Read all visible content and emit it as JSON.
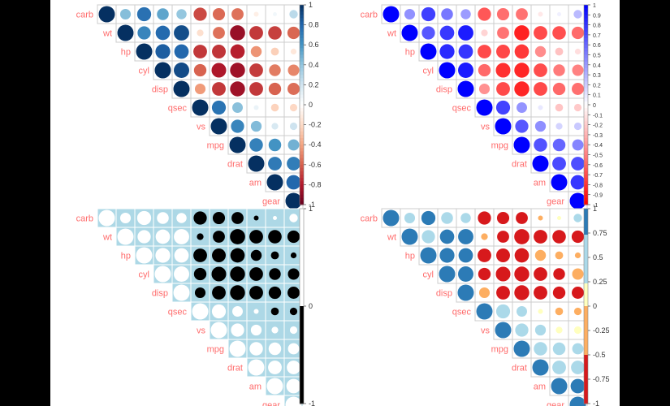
{
  "chart_data": [
    {
      "type": "heatmap",
      "variables": [
        "carb",
        "wt",
        "hp",
        "cyl",
        "disp",
        "qsec",
        "vs",
        "mpg",
        "drat",
        "am",
        "gear"
      ],
      "matrix": [
        [
          1,
          0.43,
          0.75,
          0.53,
          0.39,
          -0.66,
          -0.57,
          -0.55,
          -0.09,
          0.06,
          0.27
        ],
        [
          0.43,
          1,
          0.66,
          0.78,
          0.89,
          -0.17,
          -0.55,
          -0.87,
          -0.71,
          -0.69,
          -0.58
        ],
        [
          0.75,
          0.66,
          1,
          0.83,
          0.79,
          -0.71,
          -0.72,
          -0.78,
          -0.45,
          -0.24,
          -0.13
        ],
        [
          0.53,
          0.78,
          0.83,
          1,
          0.9,
          -0.59,
          -0.81,
          -0.85,
          -0.7,
          -0.52,
          -0.49
        ],
        [
          0.39,
          0.89,
          0.79,
          0.9,
          1,
          -0.43,
          -0.71,
          -0.85,
          -0.71,
          -0.59,
          -0.56
        ],
        [
          -0.66,
          -0.17,
          -0.71,
          -0.59,
          -0.43,
          1,
          0.74,
          0.42,
          0.09,
          -0.23,
          -0.21
        ],
        [
          -0.57,
          -0.55,
          -0.72,
          -0.81,
          -0.71,
          0.74,
          1,
          0.66,
          0.44,
          0.17,
          0.21
        ],
        [
          -0.55,
          -0.87,
          -0.78,
          -0.85,
          -0.85,
          0.42,
          0.66,
          1,
          0.68,
          0.6,
          0.48
        ],
        [
          -0.09,
          -0.71,
          -0.45,
          -0.7,
          -0.71,
          0.09,
          0.44,
          0.68,
          1,
          0.71,
          0.7
        ],
        [
          0.06,
          -0.69,
          -0.24,
          -0.52,
          -0.59,
          -0.23,
          0.17,
          0.6,
          0.71,
          1,
          0.79
        ],
        [
          0.27,
          -0.58,
          -0.13,
          -0.49,
          -0.56,
          -0.21,
          0.21,
          0.48,
          0.7,
          0.79,
          1
        ]
      ],
      "panels": [
        {
          "palette": "RdBu",
          "colors": [
            "#67001F",
            "#B2182B",
            "#D6604D",
            "#F4A582",
            "#FDDBC7",
            "#FFFFFF",
            "#D1E5F0",
            "#92C5DE",
            "#4393C3",
            "#2166AC",
            "#053061"
          ],
          "legend_ticks": [
            "1",
            "0.8",
            "0.6",
            "0.4",
            "0.2",
            "0",
            "-0.2",
            "-0.4",
            "-0.6",
            "-0.8",
            "-1"
          ],
          "legend_tick_values": [
            1,
            0.8,
            0.6,
            0.4,
            0.2,
            0,
            -0.2,
            -0.4,
            -0.6,
            -0.8,
            -1
          ],
          "legend_range": [
            -1,
            1
          ],
          "breaks": [],
          "grid_color": "#CCCCCC",
          "tl_color": "#FF6B6B"
        },
        {
          "palette": "bwr",
          "colors": [
            "#FF0000",
            "#FFFFFF",
            "#0000FF"
          ],
          "legend_ticks": [
            "1",
            "0.9",
            "0.8",
            "0.7",
            "0.6",
            "0.5",
            "0.4",
            "0.3",
            "0.2",
            "0.1",
            "0",
            "-0.1",
            "-0.2",
            "-0.3",
            "-0.4",
            "-0.5",
            "-0.6",
            "-0.7",
            "-0.8",
            "-0.9",
            "-1"
          ],
          "legend_tick_values": [
            1,
            0.9,
            0.8,
            0.7,
            0.6,
            0.5,
            0.4,
            0.3,
            0.2,
            0.1,
            0,
            -0.1,
            -0.2,
            -0.3,
            -0.4,
            -0.5,
            -0.6,
            -0.7,
            -0.8,
            -0.9,
            -1
          ],
          "legend_range": [
            -1,
            1
          ],
          "breaks": [],
          "grid_color": "#CCCCCC",
          "tl_color": "#FF6B6B"
        },
        {
          "palette": "binary",
          "colors": [
            "#000000",
            "#FFFFFF"
          ],
          "background": "#ADD8E6",
          "legend_ticks": [
            "1",
            "0",
            "-1"
          ],
          "legend_tick_values": [
            1,
            0,
            -1
          ],
          "legend_range": [
            -1,
            1
          ],
          "breaks": [
            0
          ],
          "grid_color": "#FFFFFF",
          "tl_color": "#FF6B6B"
        },
        {
          "palette": "RdYlBu-discrete",
          "colors": [
            "#D7191C",
            "#FDAE61",
            "#FFFFBF",
            "#ABD9E9",
            "#2C7BB6"
          ],
          "legend_ticks": [
            "1",
            "0.75",
            "0.5",
            "0.25",
            "0",
            "-0.25",
            "-0.5",
            "-0.75",
            "-1"
          ],
          "legend_tick_values": [
            1,
            0.75,
            0.5,
            0.25,
            0,
            -0.25,
            -0.5,
            -0.75,
            -1
          ],
          "legend_range": [
            -1,
            1
          ],
          "breaks": [
            -1,
            -0.75,
            -0.5,
            -0.25,
            0,
            0.25,
            0.5,
            0.75,
            1
          ],
          "grid_color": "#CCCCCC",
          "tl_color": "#FF6B6B"
        }
      ]
    }
  ]
}
